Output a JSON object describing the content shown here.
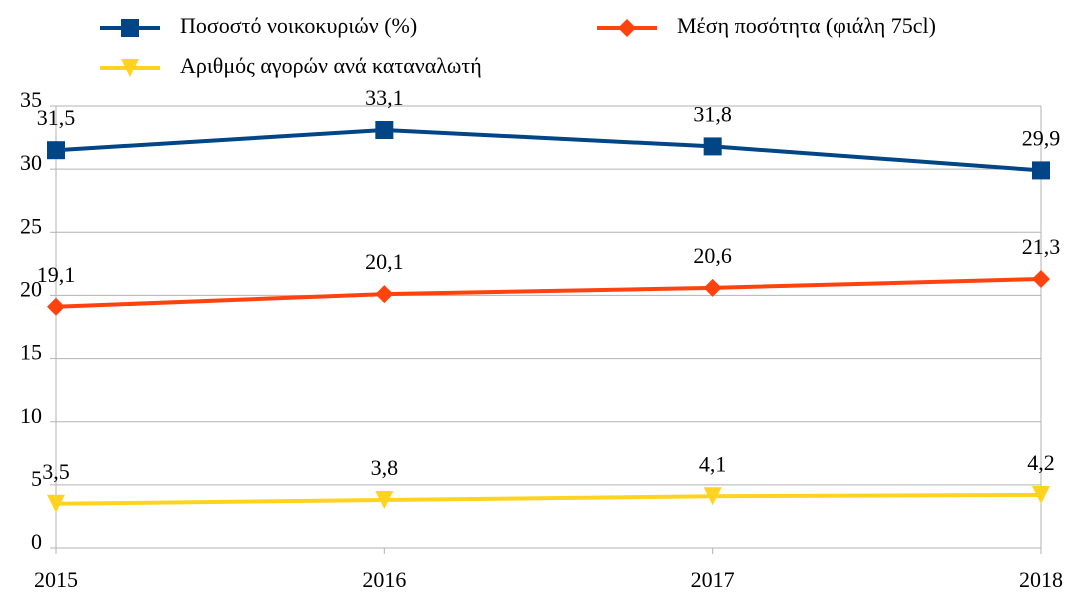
{
  "chart_data": {
    "type": "line",
    "categories": [
      "2015",
      "2016",
      "2017",
      "2018"
    ],
    "series": [
      {
        "name": "Ποσοστό νοικοκυριών (%)",
        "color": "#004586",
        "marker": "square",
        "values": [
          31.5,
          33.1,
          31.8,
          29.9
        ],
        "value_labels": [
          "31,5",
          "33,1",
          "31,8",
          "29,9"
        ]
      },
      {
        "name": "Μέση ποσότητα (φιάλη 75cl)",
        "color": "#ff420e",
        "marker": "diamond",
        "values": [
          19.1,
          20.1,
          20.6,
          21.3
        ],
        "value_labels": [
          "19,1",
          "20,1",
          "20,6",
          "21,3"
        ]
      },
      {
        "name": "Αριθμός αγορών ανά καταναλωτή",
        "color": "#ffd320",
        "marker": "triangle-down",
        "values": [
          3.5,
          3.8,
          4.1,
          4.2
        ],
        "value_labels": [
          "3,5",
          "3,8",
          "4,1",
          "4,2"
        ]
      }
    ],
    "ylim": [
      0,
      35
    ],
    "yticks": [
      0,
      5,
      10,
      15,
      20,
      25,
      30,
      35
    ],
    "grid": true,
    "legend": "top"
  }
}
